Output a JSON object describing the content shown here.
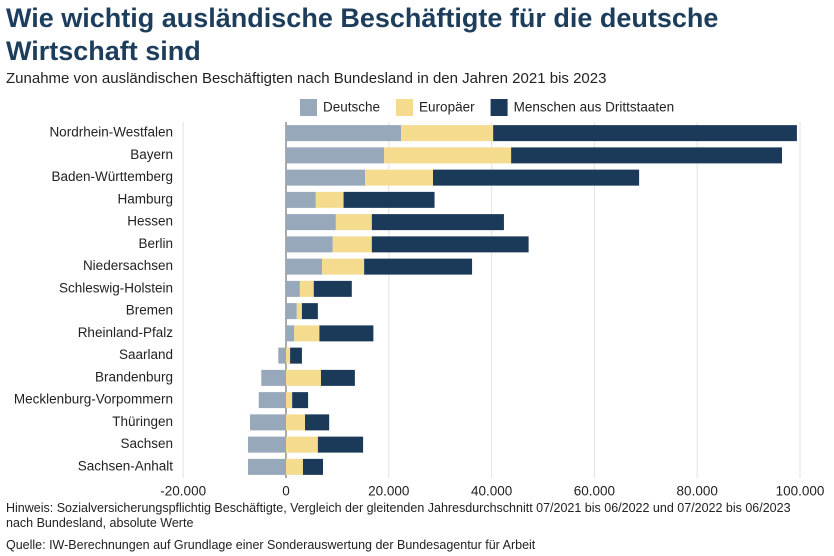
{
  "chart_data": {
    "type": "stacked-barh",
    "title": "Wie wichtig ausländische Beschäftigte für die deutsche Wirtschaft sind",
    "subtitle": "Zunahme von ausländischen Beschäftigten nach Bundesland in den Jahren 2021 bis 2023",
    "note": "Hinweis: Sozialversicherungspflichtig Beschäftigte, Vergleich der gleitenden Jahresdurchschnitt 07/2021 bis 06/2022 und 07/2022 bis 06/2023 nach Bundesland, absolute Werte",
    "source": "Quelle: IW-Berechnungen auf Grundlage einer Sonderauswertung der Bundesagentur für Arbeit",
    "categories": [
      "Nordrhein-Westfalen",
      "Bayern",
      "Baden-Württemberg",
      "Hamburg",
      "Hessen",
      "Berlin",
      "Niedersachsen",
      "Schleswig-Holstein",
      "Bremen",
      "Rheinland-Pfalz",
      "Saarland",
      "Brandenburg",
      "Mecklenburg-Vorpommern",
      "Thüringen",
      "Sachsen",
      "Sachsen-Anhalt"
    ],
    "series": [
      {
        "name": "Deutsche",
        "color": "#96a8ba",
        "values": [
          22400,
          19100,
          15400,
          5800,
          9700,
          9100,
          7000,
          2700,
          2100,
          1600,
          -1500,
          -4800,
          -5300,
          -7000,
          -7400,
          -7400
        ]
      },
      {
        "name": "Europäer",
        "color": "#f5db8d",
        "values": [
          17900,
          24700,
          13200,
          5400,
          7000,
          7600,
          8200,
          2700,
          1000,
          4900,
          800,
          6800,
          1200,
          3700,
          6200,
          3300
        ]
      },
      {
        "name": "Menschen aus Drittstaaten",
        "color": "#1b3a5a",
        "values": [
          59100,
          52700,
          40100,
          17700,
          25700,
          30500,
          21000,
          7400,
          3100,
          10500,
          2300,
          6600,
          3100,
          4700,
          8800,
          3900
        ]
      }
    ],
    "xlim": [
      -20000,
      100000
    ],
    "xticks": [
      {
        "value": -20000,
        "label": "-20.000"
      },
      0,
      {
        "value": 20000,
        "label": "20.000"
      },
      {
        "value": 40000,
        "label": "40.000"
      },
      {
        "value": 60000,
        "label": "60.000"
      },
      {
        "value": 80000,
        "label": "80.000"
      },
      {
        "value": 100000,
        "label": "100.000"
      }
    ],
    "grid": true
  }
}
